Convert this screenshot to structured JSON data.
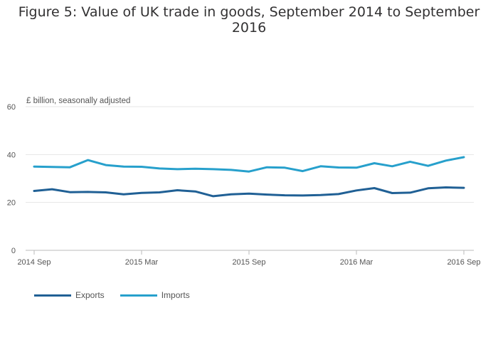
{
  "chart_data": {
    "type": "line",
    "title": "Figure 5: Value of UK trade in goods, September 2014 to September 2016",
    "ylabel": "£ billion, seasonally adjusted",
    "xlabel": "",
    "ylim": [
      0,
      60
    ],
    "yticks": [
      "0",
      "20",
      "40",
      "60"
    ],
    "xtick_labels": [
      "2014 Sep",
      "2015 Mar",
      "2015 Sep",
      "2016 Mar",
      "2016 Sep"
    ],
    "x": [
      "2014 Sep",
      "2014 Oct",
      "2014 Nov",
      "2014 Dec",
      "2015 Jan",
      "2015 Feb",
      "2015 Mar",
      "2015 Apr",
      "2015 May",
      "2015 Jun",
      "2015 Jul",
      "2015 Aug",
      "2015 Sep",
      "2015 Oct",
      "2015 Nov",
      "2015 Dec",
      "2016 Jan",
      "2016 Feb",
      "2016 Mar",
      "2016 Apr",
      "2016 May",
      "2016 Jun",
      "2016 Jul",
      "2016 Aug",
      "2016 Sep"
    ],
    "series": [
      {
        "name": "Exports",
        "color": "#206095",
        "values": [
          24.8,
          25.5,
          24.3,
          24.4,
          24.2,
          23.4,
          24.0,
          24.2,
          25.1,
          24.6,
          22.6,
          23.4,
          23.7,
          23.3,
          23.0,
          22.9,
          23.1,
          23.5,
          25.0,
          26.0,
          23.9,
          24.1,
          25.9,
          26.3,
          26.1
        ]
      },
      {
        "name": "Imports",
        "color": "#27a0cc",
        "values": [
          35.0,
          34.8,
          34.7,
          37.7,
          35.6,
          35.0,
          34.9,
          34.2,
          33.9,
          34.1,
          33.9,
          33.6,
          32.9,
          34.7,
          34.5,
          33.1,
          35.1,
          34.6,
          34.5,
          36.4,
          35.1,
          37.0,
          35.3,
          37.5,
          38.9
        ]
      }
    ],
    "legend_position": "bottom-left"
  }
}
